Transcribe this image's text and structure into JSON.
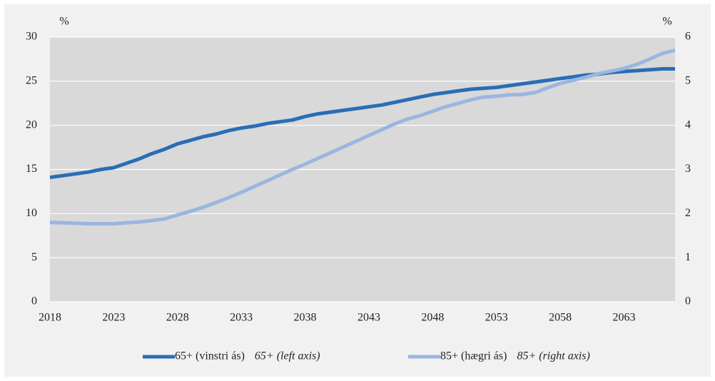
{
  "chart_data": {
    "type": "line",
    "y_unit": "%",
    "y2_unit": "%",
    "x": [
      2018,
      2019,
      2020,
      2021,
      2022,
      2023,
      2024,
      2025,
      2026,
      2027,
      2028,
      2029,
      2030,
      2031,
      2032,
      2033,
      2034,
      2035,
      2036,
      2037,
      2038,
      2039,
      2040,
      2041,
      2042,
      2043,
      2044,
      2045,
      2046,
      2047,
      2048,
      2049,
      2050,
      2051,
      2052,
      2053,
      2054,
      2055,
      2056,
      2057,
      2058,
      2059,
      2060,
      2061,
      2062,
      2063,
      2064,
      2065,
      2066,
      2067
    ],
    "xlim": [
      2018,
      2067
    ],
    "xticks": [
      2018,
      2023,
      2028,
      2033,
      2038,
      2043,
      2048,
      2053,
      2058,
      2063
    ],
    "ylim": [
      0,
      30
    ],
    "yticks": [
      0,
      5,
      10,
      15,
      20,
      25,
      30
    ],
    "y2lim": [
      0,
      6
    ],
    "y2ticks": [
      0,
      1,
      2,
      3,
      4,
      5,
      6
    ],
    "grid": true,
    "series": [
      {
        "name": "65+ (vinstri ás)",
        "name_en": "65+ (left axis)",
        "color": "#2a6db5",
        "axis": "y",
        "values": [
          14.1,
          14.3,
          14.5,
          14.7,
          15.0,
          15.2,
          15.7,
          16.2,
          16.8,
          17.3,
          17.9,
          18.3,
          18.7,
          19.0,
          19.4,
          19.7,
          19.9,
          20.2,
          20.4,
          20.6,
          21.0,
          21.3,
          21.5,
          21.7,
          21.9,
          22.1,
          22.3,
          22.6,
          22.9,
          23.2,
          23.5,
          23.7,
          23.9,
          24.1,
          24.2,
          24.3,
          24.5,
          24.7,
          24.9,
          25.1,
          25.3,
          25.5,
          25.7,
          25.8,
          26.0,
          26.1,
          26.2,
          26.3,
          26.4,
          26.4
        ]
      },
      {
        "name": "85+ (hægri ás)",
        "name_en": "85+ (right axis)",
        "color": "#9ab6e0",
        "axis": "y2",
        "values": [
          1.8,
          1.79,
          1.78,
          1.77,
          1.77,
          1.77,
          1.79,
          1.81,
          1.84,
          1.88,
          1.97,
          2.05,
          2.14,
          2.25,
          2.36,
          2.48,
          2.61,
          2.74,
          2.87,
          3.0,
          3.12,
          3.25,
          3.38,
          3.51,
          3.64,
          3.77,
          3.9,
          4.03,
          4.14,
          4.22,
          4.32,
          4.42,
          4.5,
          4.58,
          4.64,
          4.66,
          4.69,
          4.7,
          4.74,
          4.85,
          4.95,
          5.02,
          5.09,
          5.17,
          5.23,
          5.29,
          5.38,
          5.5,
          5.63,
          5.7
        ]
      }
    ]
  }
}
